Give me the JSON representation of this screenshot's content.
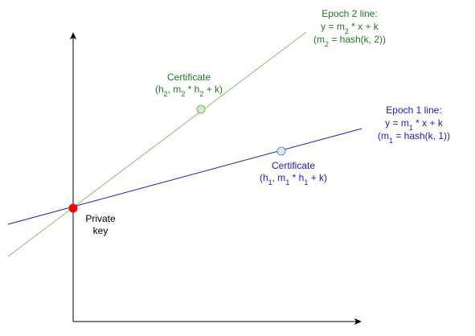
{
  "colors": {
    "epoch1": "#1a1acc",
    "epoch2": "#1e7a1e",
    "epoch2_line": "#8fbc6f",
    "private_key": "#ff0000",
    "cert1_fill": "#dae8fc",
    "cert2_fill": "#d5e8d4",
    "axes": "#000000"
  },
  "epoch2": {
    "title": "Epoch 2 line:",
    "eq": {
      "a": "y = m",
      "sub": "2",
      "b": " * x + k"
    },
    "def": {
      "a": "(m",
      "sub": "2",
      "b": " = hash(k, 2))"
    }
  },
  "epoch1": {
    "title": "Epoch 1 line:",
    "eq": {
      "a": "y = m",
      "sub": "1",
      "b": " * x + k"
    },
    "def": {
      "a": "(m",
      "sub": "1",
      "b": " = hash(k, 1))"
    }
  },
  "cert2": {
    "title": "Certificate",
    "coord": {
      "p1": "(h",
      "s1": "2",
      "p2": ", m",
      "s2": "2",
      "p3": " * h",
      "s3": "2",
      "p4": " + k)"
    }
  },
  "cert1": {
    "title": "Certificate",
    "coord": {
      "p1": "(h",
      "s1": "1",
      "p2": ", m",
      "s2": "1",
      "p3": " * h",
      "s3": "1",
      "p4": " + k)"
    }
  },
  "private_key": {
    "line1": "Private",
    "line2": "key"
  }
}
